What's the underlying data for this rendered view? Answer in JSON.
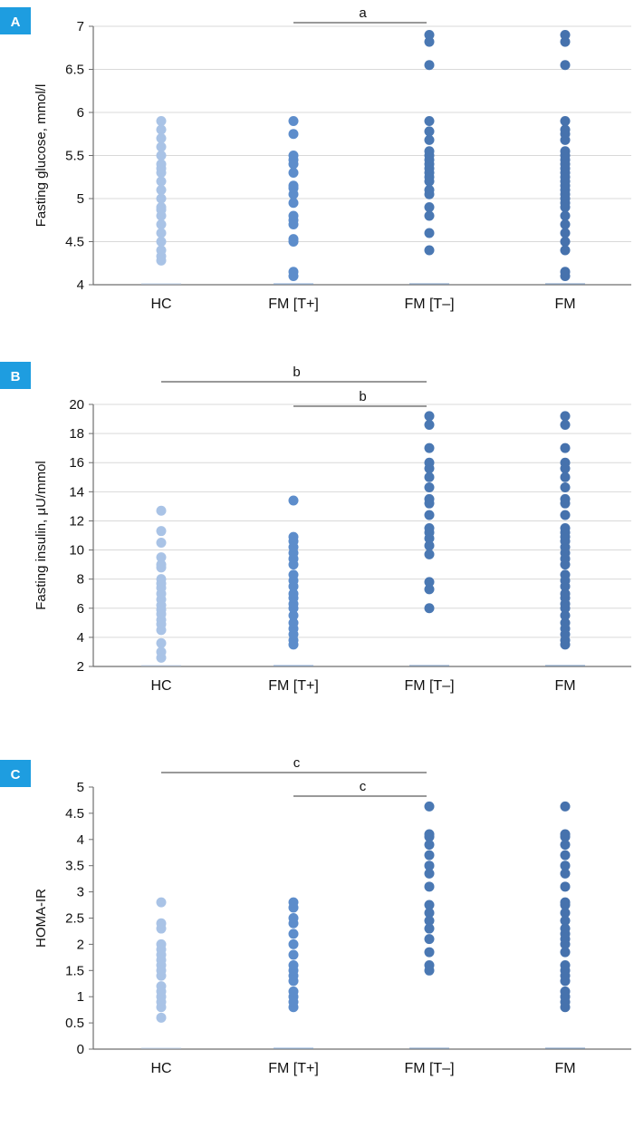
{
  "colors": {
    "hc": "#a9c3e6",
    "fm_t_plus": "#5d8dcb",
    "fm_t_minus": "#4a78b3",
    "fm": "#4672ad",
    "badge": "#1e9de0",
    "axis": "#6e6e6e",
    "grid": "#d9d9d9",
    "bracket": "#333333"
  },
  "chart_data": [
    {
      "panel": "A",
      "type": "scatter",
      "ylabel": "Fasting glucose, mmol/l",
      "ylim": [
        4,
        7
      ],
      "yticks": [
        4,
        4.5,
        5,
        5.5,
        6,
        6.5,
        7
      ],
      "ytick_labels": [
        "4",
        "4.5",
        "5",
        "5.5",
        "6",
        "6.5",
        "7"
      ],
      "grid": true,
      "categories": [
        "HC",
        "FM [T+]",
        "FM [T–]",
        "FM"
      ],
      "series": [
        {
          "values": [
            4.28,
            4.33,
            4.4,
            4.5,
            4.6,
            4.7,
            4.8,
            4.87,
            4.9,
            5.0,
            5.1,
            5.2,
            5.3,
            5.35,
            5.4,
            5.5,
            5.6,
            5.7,
            5.8,
            5.9
          ]
        },
        {
          "values": [
            4.1,
            4.15,
            4.5,
            4.53,
            4.7,
            4.75,
            4.8,
            4.95,
            5.05,
            5.12,
            5.15,
            5.3,
            5.4,
            5.45,
            5.5,
            5.75,
            5.9
          ]
        },
        {
          "values": [
            4.4,
            4.6,
            4.8,
            4.9,
            5.05,
            5.1,
            5.2,
            5.25,
            5.3,
            5.35,
            5.4,
            5.45,
            5.5,
            5.55,
            5.68,
            5.78,
            5.9,
            6.55,
            6.82,
            6.9
          ]
        },
        {
          "values": [
            4.1,
            4.15,
            4.4,
            4.5,
            4.6,
            4.7,
            4.8,
            4.9,
            4.95,
            5.0,
            5.05,
            5.1,
            5.15,
            5.2,
            5.25,
            5.3,
            5.35,
            5.4,
            5.45,
            5.5,
            5.55,
            5.68,
            5.75,
            5.8,
            5.9,
            6.55,
            6.82,
            6.9
          ]
        }
      ],
      "brackets": [
        {
          "from": 1,
          "to": 2,
          "label": "a"
        }
      ]
    },
    {
      "panel": "B",
      "type": "scatter",
      "ylabel": "Fasting insulin, μU/mmol",
      "ylim": [
        2,
        20
      ],
      "yticks": [
        2,
        4,
        6,
        8,
        10,
        12,
        14,
        16,
        18,
        20
      ],
      "ytick_labels": [
        "2",
        "4",
        "6",
        "8",
        "10",
        "12",
        "14",
        "16",
        "18",
        "20"
      ],
      "grid": true,
      "categories": [
        "HC",
        "FM [T+]",
        "FM [T–]",
        "FM"
      ],
      "series": [
        {
          "values": [
            2.6,
            3.0,
            3.6,
            4.5,
            4.9,
            5.2,
            5.6,
            5.9,
            6.2,
            6.6,
            7.0,
            7.4,
            7.7,
            8.0,
            8.8,
            9.0,
            9.5,
            10.5,
            11.3,
            12.7
          ]
        },
        {
          "values": [
            3.5,
            3.8,
            4.2,
            4.6,
            5.0,
            5.5,
            6.0,
            6.3,
            6.7,
            7.0,
            7.5,
            7.9,
            8.3,
            9.0,
            9.4,
            9.8,
            10.2,
            10.6,
            10.9,
            13.4
          ]
        },
        {
          "values": [
            6.0,
            7.3,
            7.8,
            9.7,
            10.3,
            10.8,
            11.2,
            11.5,
            12.4,
            13.2,
            13.5,
            14.3,
            15.0,
            15.6,
            16.0,
            17.0,
            18.6,
            19.2
          ]
        },
        {
          "values": [
            3.5,
            3.8,
            4.2,
            4.6,
            5.0,
            5.5,
            6.0,
            6.3,
            6.7,
            7.0,
            7.5,
            7.9,
            8.3,
            9.0,
            9.4,
            9.8,
            10.2,
            10.6,
            10.9,
            11.2,
            11.5,
            12.4,
            13.2,
            13.5,
            14.3,
            15.0,
            15.6,
            16.0,
            17.0,
            18.6,
            19.2
          ]
        }
      ],
      "brackets": [
        {
          "from": 0,
          "to": 2,
          "label": "b"
        },
        {
          "from": 1,
          "to": 2,
          "label": "b"
        }
      ]
    },
    {
      "panel": "C",
      "type": "scatter",
      "ylabel": "HOMA-IR",
      "ylim": [
        0,
        5
      ],
      "yticks": [
        0,
        0.5,
        1,
        1.5,
        2,
        2.5,
        3,
        3.5,
        4,
        4.5,
        5
      ],
      "ytick_labels": [
        "0",
        "0.5",
        "1",
        "1.5",
        "2",
        "2.5",
        "3",
        "3.5",
        "4",
        "4.5",
        "5"
      ],
      "grid": false,
      "categories": [
        "HC",
        "FM [T+]",
        "FM [T–]",
        "FM"
      ],
      "series": [
        {
          "values": [
            0.6,
            0.8,
            0.9,
            1.0,
            1.1,
            1.2,
            1.4,
            1.5,
            1.6,
            1.7,
            1.8,
            1.9,
            2.0,
            2.3,
            2.4,
            2.8
          ]
        },
        {
          "values": [
            0.8,
            0.9,
            1.0,
            1.1,
            1.3,
            1.4,
            1.5,
            1.6,
            1.8,
            2.0,
            2.2,
            2.4,
            2.5,
            2.7,
            2.8
          ]
        },
        {
          "values": [
            1.5,
            1.6,
            1.85,
            2.1,
            2.3,
            2.45,
            2.6,
            2.75,
            3.1,
            3.35,
            3.5,
            3.7,
            3.9,
            4.05,
            4.1,
            4.63
          ]
        },
        {
          "values": [
            0.8,
            0.9,
            1.0,
            1.1,
            1.3,
            1.4,
            1.5,
            1.6,
            1.85,
            2.0,
            2.1,
            2.2,
            2.3,
            2.45,
            2.6,
            2.75,
            2.8,
            3.1,
            3.35,
            3.5,
            3.7,
            3.9,
            4.05,
            4.1,
            4.63
          ]
        }
      ],
      "brackets": [
        {
          "from": 0,
          "to": 2,
          "label": "c"
        },
        {
          "from": 1,
          "to": 2,
          "label": "c"
        }
      ]
    }
  ]
}
